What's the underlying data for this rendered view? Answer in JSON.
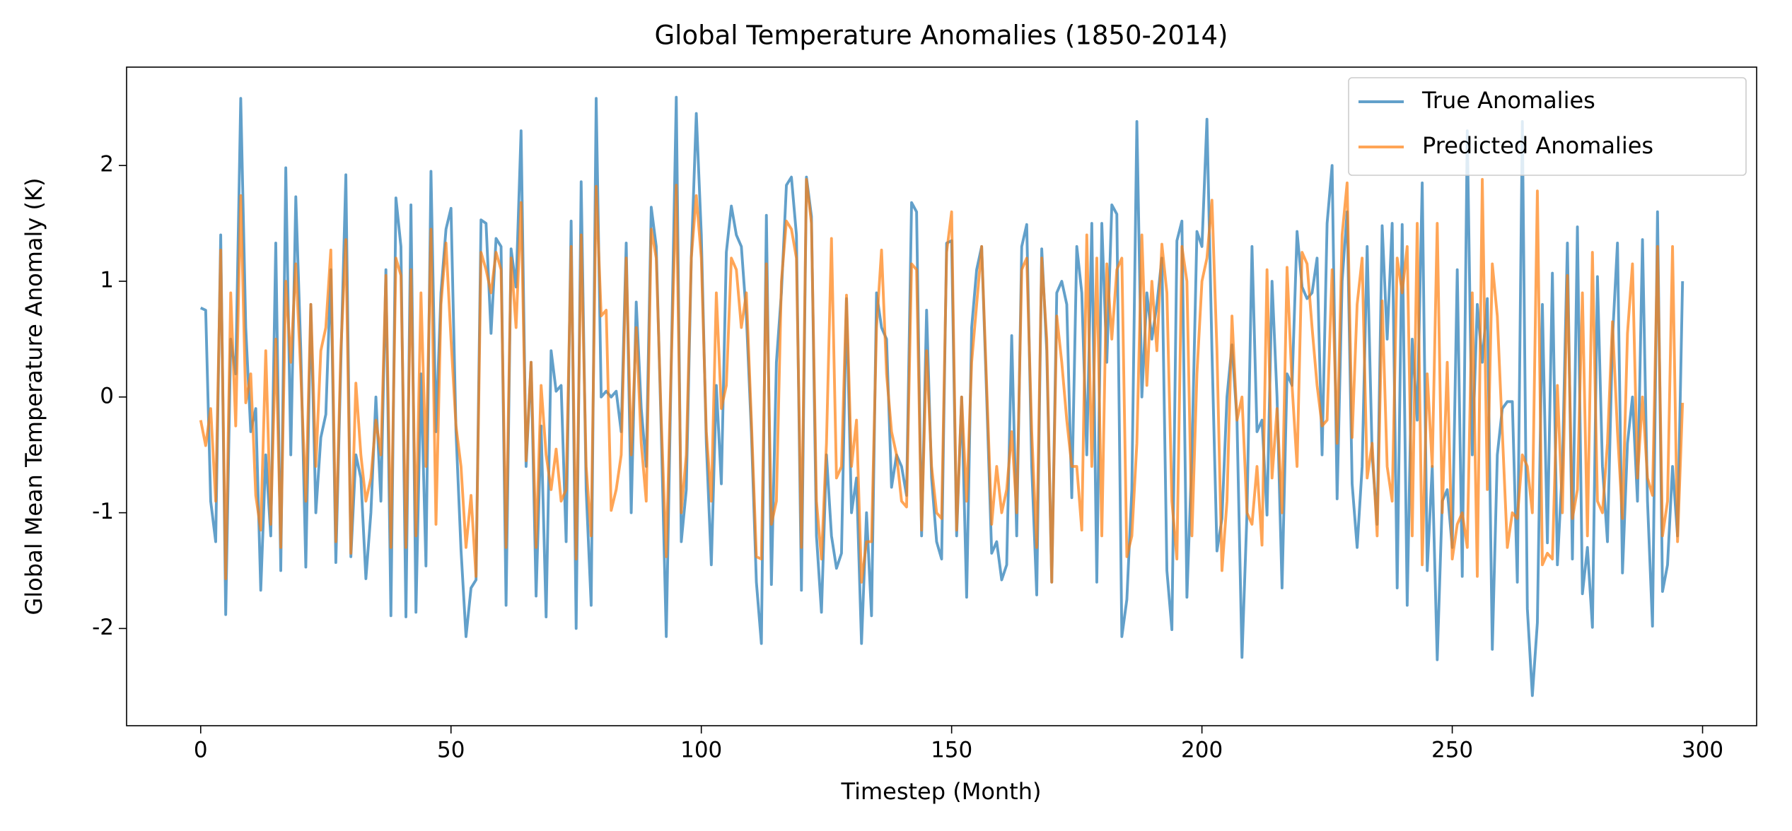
{
  "chart_data": {
    "type": "line",
    "title": "Global Temperature Anomalies (1850-2014)",
    "xlabel": "Timestep (Month)",
    "ylabel": "Global Mean Temperature Anomaly (K)",
    "xlim": [
      -14.8,
      310.8
    ],
    "ylim": [
      -2.84,
      2.85
    ],
    "xticks": [
      0,
      50,
      100,
      150,
      200,
      250,
      300
    ],
    "yticks": [
      -2,
      -1,
      0,
      1,
      2
    ],
    "legend": "upper right",
    "x": [
      0,
      1,
      2,
      3,
      4,
      5,
      6,
      7,
      8,
      9,
      10,
      11,
      12,
      13,
      14,
      15,
      16,
      17,
      18,
      19,
      20,
      21,
      22,
      23,
      24,
      25,
      26,
      27,
      28,
      29,
      30,
      31,
      32,
      33,
      34,
      35,
      36,
      37,
      38,
      39,
      40,
      41,
      42,
      43,
      44,
      45,
      46,
      47,
      48,
      49,
      50,
      51,
      52,
      53,
      54,
      55,
      56,
      57,
      58,
      59,
      60,
      61,
      62,
      63,
      64,
      65,
      66,
      67,
      68,
      69,
      70,
      71,
      72,
      73,
      74,
      75,
      76,
      77,
      78,
      79,
      80,
      81,
      82,
      83,
      84,
      85,
      86,
      87,
      88,
      89,
      90,
      91,
      92,
      93,
      94,
      95,
      96,
      97,
      98,
      99,
      100,
      101,
      102,
      103,
      104,
      105,
      106,
      107,
      108,
      109,
      110,
      111,
      112,
      113,
      114,
      115,
      116,
      117,
      118,
      119,
      120,
      121,
      122,
      123,
      124,
      125,
      126,
      127,
      128,
      129,
      130,
      131,
      132,
      133,
      134,
      135,
      136,
      137,
      138,
      139,
      140,
      141,
      142,
      143,
      144,
      145,
      146,
      147,
      148,
      149,
      150,
      151,
      152,
      153,
      154,
      155,
      156,
      157,
      158,
      159,
      160,
      161,
      162,
      163,
      164,
      165,
      166,
      167,
      168,
      169,
      170,
      171,
      172,
      173,
      174,
      175,
      176,
      177,
      178,
      179,
      180,
      181,
      182,
      183,
      184,
      185,
      186,
      187,
      188,
      189,
      190,
      191,
      192,
      193,
      194,
      195,
      196,
      197,
      198,
      199,
      200,
      201,
      202,
      203,
      204,
      205,
      206,
      207,
      208,
      209,
      210,
      211,
      212,
      213,
      214,
      215,
      216,
      217,
      218,
      219,
      220,
      221,
      222,
      223,
      224,
      225,
      226,
      227,
      228,
      229,
      230,
      231,
      232,
      233,
      234,
      235,
      236,
      237,
      238,
      239,
      240,
      241,
      242,
      243,
      244,
      245,
      246,
      247,
      248,
      249,
      250,
      251,
      252,
      253,
      254,
      255,
      256,
      257,
      258,
      259,
      260,
      261,
      262,
      263,
      264,
      265,
      266,
      267,
      268,
      269,
      270,
      271,
      272,
      273,
      274,
      275,
      276,
      277,
      278,
      279,
      280,
      281,
      282,
      283,
      284,
      285,
      286,
      287,
      288,
      289,
      290,
      291,
      292,
      293,
      294,
      295,
      296
    ],
    "series": [
      {
        "name": "True Anomalies",
        "color": "#1f77b4",
        "values": [
          0.77,
          0.75,
          -0.9,
          -1.25,
          1.4,
          -1.88,
          0.5,
          0.2,
          2.58,
          0.6,
          -0.3,
          -0.1,
          -1.67,
          -0.5,
          -1.2,
          1.33,
          -1.5,
          1.98,
          -0.5,
          1.73,
          0.4,
          -1.47,
          0.8,
          -1.0,
          -0.35,
          -0.15,
          1.1,
          -1.43,
          0.3,
          1.92,
          -1.38,
          -0.5,
          -0.7,
          -1.57,
          -1.0,
          0.0,
          -0.9,
          1.1,
          -1.89,
          1.72,
          1.3,
          -1.9,
          1.66,
          -1.86,
          0.2,
          -1.46,
          1.95,
          -0.3,
          0.9,
          1.45,
          1.63,
          -0.3,
          -1.32,
          -2.07,
          -1.65,
          -1.58,
          1.53,
          1.5,
          0.55,
          1.37,
          1.3,
          -1.8,
          1.28,
          0.95,
          2.3,
          -0.6,
          0.3,
          -1.72,
          -0.25,
          -1.9,
          0.4,
          0.05,
          0.1,
          -1.25,
          1.52,
          -2.0,
          1.86,
          -0.8,
          -1.8,
          2.58,
          0.0,
          0.05,
          0.0,
          0.05,
          -0.3,
          1.33,
          -1.0,
          0.82,
          -0.1,
          -0.6,
          1.64,
          1.3,
          -0.3,
          -2.07,
          0.3,
          2.59,
          -1.25,
          -0.8,
          1.2,
          2.45,
          1.4,
          -0.4,
          -1.45,
          0.1,
          -0.75,
          1.25,
          1.65,
          1.4,
          1.3,
          0.7,
          -0.3,
          -1.6,
          -2.13,
          1.57,
          -1.62,
          0.3,
          0.9,
          1.83,
          1.9,
          1.4,
          -1.67,
          1.9,
          1.56,
          -1.2,
          -1.86,
          -0.5,
          -1.2,
          -1.48,
          -1.35,
          0.85,
          -1.0,
          -0.7,
          -2.13,
          -1.0,
          -1.89,
          0.9,
          0.6,
          0.5,
          -0.78,
          -0.5,
          -0.6,
          -0.85,
          1.68,
          1.6,
          -1.2,
          0.75,
          -0.7,
          -1.25,
          -1.4,
          1.33,
          1.35,
          -1.2,
          0.0,
          -1.73,
          0.6,
          1.1,
          1.3,
          0.0,
          -1.35,
          -1.25,
          -1.58,
          -1.45,
          0.53,
          -1.2,
          1.3,
          1.49,
          -0.6,
          -1.71,
          1.28,
          0.4,
          -1.6,
          0.9,
          1.0,
          0.8,
          -0.87,
          1.3,
          0.9,
          -0.5,
          1.5,
          -1.6,
          1.5,
          0.3,
          1.66,
          1.58,
          -2.07,
          -1.75,
          -0.8,
          2.38,
          0.0,
          0.9,
          0.5,
          0.8,
          1.2,
          -1.5,
          -2.01,
          1.35,
          1.52,
          -1.73,
          -0.5,
          1.43,
          1.3,
          2.4,
          0.4,
          -1.33,
          -1.05,
          0.0,
          0.45,
          -0.2,
          -2.25,
          -1.0,
          1.3,
          -0.3,
          -0.2,
          -1.02,
          1.0,
          0.0,
          -1.65,
          0.2,
          0.1,
          1.43,
          0.95,
          0.85,
          0.9,
          1.2,
          -0.5,
          1.5,
          2.0,
          -0.88,
          1.0,
          1.6,
          -0.75,
          -1.3,
          -0.6,
          1.3,
          -0.5,
          -1.1,
          1.48,
          0.5,
          1.5,
          -1.65,
          1.49,
          -1.8,
          0.5,
          -0.2,
          1.85,
          -1.5,
          -0.6,
          -2.27,
          -0.9,
          -0.8,
          -1.3,
          1.1,
          -1.55,
          2.3,
          -0.5,
          0.8,
          0.3,
          0.85,
          -2.18,
          -0.5,
          -0.1,
          -0.04,
          -0.04,
          -1.6,
          2.38,
          -1.83,
          -2.58,
          -1.95,
          0.8,
          -1.26,
          1.07,
          -1.45,
          -0.6,
          1.33,
          -1.4,
          1.47,
          -1.7,
          -1.3,
          -1.99,
          1.04,
          -0.6,
          -1.25,
          0.5,
          1.33,
          -1.52,
          -0.4,
          0.0,
          -0.9,
          1.36,
          -0.9,
          -1.98,
          1.6,
          -1.68,
          -1.45,
          -0.6,
          -1.2,
          1.0
        ]
      },
      {
        "name": "Predicted Anomalies",
        "color": "#ff7f0e",
        "values": [
          -0.2,
          -0.42,
          -0.1,
          -0.9,
          1.27,
          -1.57,
          0.9,
          -0.25,
          1.74,
          -0.05,
          0.2,
          -0.85,
          -1.15,
          0.4,
          -1.1,
          0.5,
          -1.3,
          1.0,
          0.3,
          1.15,
          0.2,
          -0.9,
          0.8,
          -0.6,
          0.4,
          0.6,
          1.27,
          -1.25,
          0.4,
          1.36,
          -1.35,
          0.12,
          -0.5,
          -0.9,
          -0.7,
          -0.2,
          -0.5,
          1.05,
          -1.3,
          1.2,
          1.05,
          -1.3,
          1.1,
          -1.2,
          0.9,
          -0.6,
          1.45,
          -1.1,
          0.8,
          1.33,
          0.5,
          -0.25,
          -0.6,
          -1.3,
          -0.85,
          -1.55,
          1.25,
          1.1,
          0.9,
          1.25,
          1.1,
          -1.3,
          1.2,
          0.6,
          1.68,
          -0.55,
          0.3,
          -1.3,
          0.1,
          -0.5,
          -0.8,
          -0.45,
          -0.9,
          -0.8,
          1.3,
          -1.4,
          1.4,
          -0.6,
          -1.2,
          1.82,
          0.7,
          0.75,
          -0.98,
          -0.8,
          -0.5,
          1.2,
          -0.5,
          0.6,
          -0.4,
          -0.9,
          1.45,
          1.2,
          -0.2,
          -1.38,
          0.3,
          1.83,
          -1.0,
          -0.5,
          1.2,
          1.74,
          1.2,
          -0.3,
          -0.9,
          0.9,
          -0.1,
          0.1,
          1.2,
          1.1,
          0.6,
          0.9,
          -0.2,
          -1.38,
          -1.4,
          1.15,
          -1.1,
          -0.9,
          1.0,
          1.52,
          1.45,
          1.2,
          -1.3,
          1.88,
          1.5,
          -0.9,
          -1.4,
          -0.4,
          1.37,
          -0.7,
          -0.6,
          0.88,
          -0.6,
          -0.2,
          -1.6,
          -1.25,
          -1.25,
          0.6,
          1.27,
          0.2,
          -0.3,
          -0.5,
          -0.9,
          -0.95,
          1.15,
          1.1,
          -1.15,
          0.4,
          -0.6,
          -1.0,
          -1.05,
          1.25,
          1.6,
          -1.15,
          0.0,
          -0.9,
          0.3,
          0.8,
          1.3,
          0.1,
          -1.1,
          -0.6,
          -1.0,
          -0.8,
          -0.3,
          -1.0,
          1.1,
          1.2,
          -0.3,
          -1.3,
          1.2,
          0.5,
          -1.6,
          0.7,
          0.3,
          -0.2,
          -0.6,
          -0.6,
          -1.15,
          1.4,
          -0.6,
          1.2,
          -1.2,
          1.15,
          0.5,
          1.1,
          1.2,
          -1.38,
          -1.2,
          -0.4,
          1.4,
          0.1,
          1.0,
          0.4,
          1.32,
          0.9,
          -0.9,
          -1.4,
          1.3,
          1.0,
          -1.2,
          0.2,
          1.0,
          1.2,
          1.7,
          0.4,
          -1.5,
          -0.9,
          0.7,
          -0.2,
          0.0,
          -1.0,
          -1.1,
          -0.6,
          -1.28,
          1.1,
          -0.7,
          -0.1,
          -1.0,
          1.12,
          0.1,
          -0.6,
          1.25,
          1.15,
          0.6,
          0.1,
          -0.25,
          -0.2,
          1.1,
          -0.4,
          1.4,
          1.85,
          -0.35,
          0.8,
          1.2,
          -0.7,
          -0.4,
          -1.2,
          0.83,
          -0.6,
          -0.9,
          1.2,
          0.9,
          1.3,
          -1.2,
          1.5,
          -1.45,
          0.2,
          -0.6,
          1.5,
          -1.0,
          0.3,
          -1.4,
          -1.1,
          -1.0,
          -1.3,
          0.9,
          -1.55,
          1.88,
          -0.8,
          1.15,
          0.7,
          -0.3,
          -1.3,
          -1.0,
          -1.05,
          -0.5,
          -0.6,
          -1.0,
          1.78,
          -1.45,
          -1.35,
          -1.4,
          0.1,
          -1.0,
          1.05,
          -1.05,
          -0.8,
          0.9,
          -1.2,
          1.25,
          -0.9,
          -1.0,
          -0.4,
          0.65,
          -0.3,
          -1.05,
          0.55,
          1.15,
          -0.7,
          0.0,
          -0.7,
          -0.85,
          1.3,
          -1.2,
          -0.9,
          1.3,
          -1.25,
          -0.05
        ]
      }
    ]
  }
}
